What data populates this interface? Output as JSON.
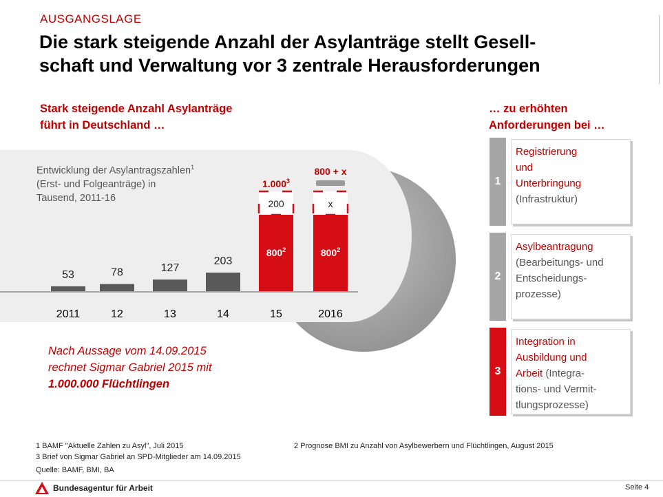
{
  "header": {
    "kicker": "AUSGANGSLAGE",
    "title_line1": "Die stark steigende Anzahl der Asylanträge stellt Gesell-",
    "title_line2": "schaft und Verwaltung vor 3 zentrale Herausforderungen"
  },
  "left": {
    "subtitle_line1": "Stark steigende Anzahl Asylanträge",
    "subtitle_line2": "führt in Deutschland …",
    "chart_desc_line1": "Entwicklung der Asylantragszahlen",
    "chart_desc_sup": "1",
    "chart_desc_line2": "(Erst- und Folgeanträge) in",
    "chart_desc_line3": "Tausend, 2011-16"
  },
  "chart_data": {
    "type": "bar",
    "categories": [
      "2011",
      "12",
      "13",
      "14",
      "15",
      "2016"
    ],
    "values": [
      53,
      78,
      127,
      203,
      1000,
      800
    ],
    "series_segments": {
      "base_gray": [
        53,
        78,
        127,
        203,
        null,
        null
      ],
      "forecast_red": [
        null,
        null,
        null,
        null,
        800,
        800
      ],
      "top_segment": [
        null,
        null,
        null,
        null,
        200,
        null
      ]
    },
    "labels": {
      "bar_values": [
        "53",
        "78",
        "127",
        "203"
      ],
      "red_2015": "800",
      "red_2015_sup": "2",
      "red_2016": "800",
      "red_2016_sup": "2",
      "top_2015": "200",
      "top_2016": "x",
      "total_2015": "1.000",
      "total_2015_sup": "3",
      "total_2016": "800 + x"
    },
    "colors": {
      "gray": "#595959",
      "red": "#d40e14",
      "accent": "#c00000"
    }
  },
  "quote": {
    "line1": "Nach Aussage vom 14.09.2015",
    "line2": "rechnet Sigmar Gabriel 2015 mit",
    "line3": "1.000.000 Flüchtlingen"
  },
  "right": {
    "subtitle_line1": "… zu erhöhten",
    "subtitle_line2": "Anforderungen bei …",
    "items": [
      {
        "num": "1",
        "color": "#a6a6a6",
        "main": [
          "Registrierung",
          "und",
          "Unterbringung"
        ],
        "sub": [
          "(Infrastruktur)"
        ]
      },
      {
        "num": "2",
        "color": "#a6a6a6",
        "main": [
          "Asylbeantragung"
        ],
        "sub": [
          "(Bearbeitungs- und",
          "Entscheidungs-",
          "prozesse)"
        ]
      },
      {
        "num": "3",
        "color": "#d40e14",
        "main": [
          "Integration in",
          "Ausbildung und",
          "Arbeit"
        ],
        "sub_inline": " (Integra-",
        "sub": [
          "tions- und Vermit-",
          "tlungsprozesse)"
        ]
      }
    ]
  },
  "footnotes": {
    "f1": "1 BAMF \"Aktuelle Zahlen zu Asyl\", Juli 2015",
    "f2": "2 Prognose BMI zu Anzahl von Asylbewerbern und Flüchtlingen, August 2015",
    "f3": "3 Brief von Sigmar Gabriel an SPD-Mitglieder am 14.09.2015",
    "source": "Quelle: BAMF, BMI, BA"
  },
  "footer": {
    "logo_text": "Bundesagentur für Arbeit",
    "page": "Seite 4"
  }
}
